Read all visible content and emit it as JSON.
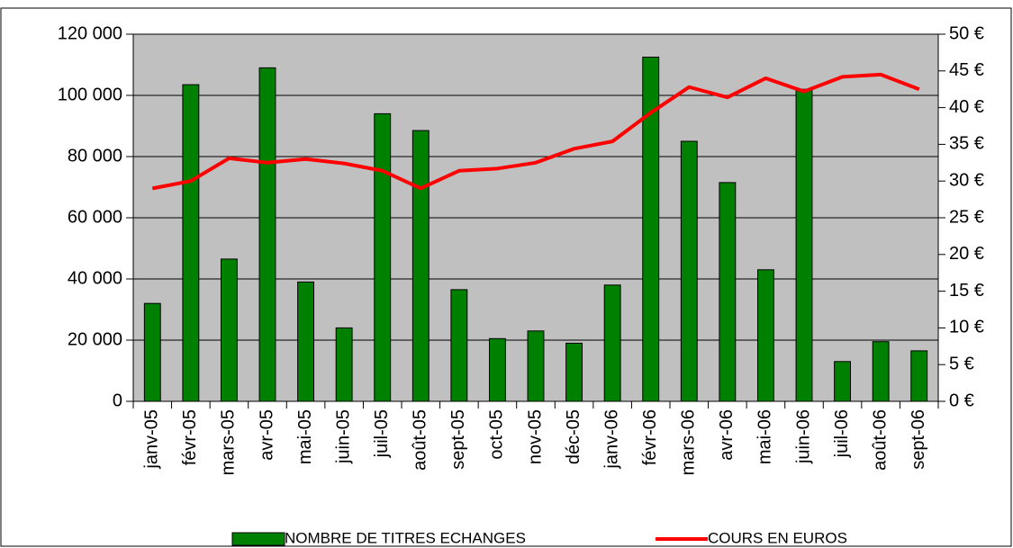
{
  "chart_data": {
    "type": "bar",
    "categories": [
      "janv-05",
      "févr-05",
      "mars-05",
      "avr-05",
      "mai-05",
      "juin-05",
      "juil-05",
      "août-05",
      "sept-05",
      "oct-05",
      "nov-05",
      "déc-05",
      "janv-06",
      "févr-06",
      "mars-06",
      "avr-06",
      "mai-06",
      "juin-06",
      "juil-06",
      "août-06",
      "sept-06"
    ],
    "series": [
      {
        "name": "NOMBRE DE TITRES ECHANGES",
        "type": "bar",
        "color": "#008000",
        "values": [
          32000,
          103500,
          46500,
          109000,
          39000,
          24000,
          94000,
          88500,
          36500,
          20500,
          23000,
          19000,
          38000,
          112500,
          85000,
          71500,
          43000,
          102000,
          13000,
          19500,
          16500
        ]
      },
      {
        "name": "COURS EN EUROS",
        "type": "line",
        "axis": "y2",
        "color": "#ff0000",
        "values": [
          29.0,
          30.0,
          33.1,
          32.5,
          33.0,
          32.4,
          31.4,
          29.0,
          31.4,
          31.7,
          32.5,
          34.4,
          35.4,
          39.3,
          42.8,
          41.4,
          44.0,
          42.2,
          44.2,
          44.5,
          42.5
        ]
      }
    ],
    "ylim": [
      0,
      120000
    ],
    "yticks": [
      {
        "value": 0,
        "label": "0"
      },
      {
        "value": 20000,
        "label": "20 000"
      },
      {
        "value": 40000,
        "label": "40 000"
      },
      {
        "value": 60000,
        "label": "60 000"
      },
      {
        "value": 80000,
        "label": "80 000"
      },
      {
        "value": 100000,
        "label": "100 000"
      },
      {
        "value": 120000,
        "label": "120 000"
      }
    ],
    "y2lim": [
      0,
      50
    ],
    "y2ticks": [
      {
        "value": 0,
        "label": "0 €"
      },
      {
        "value": 5,
        "label": "5 €"
      },
      {
        "value": 10,
        "label": "10 €"
      },
      {
        "value": 15,
        "label": "15 €"
      },
      {
        "value": 20,
        "label": "20 €"
      },
      {
        "value": 25,
        "label": "25 €"
      },
      {
        "value": 30,
        "label": "30 €"
      },
      {
        "value": 35,
        "label": "35 €"
      },
      {
        "value": 40,
        "label": "40 €"
      },
      {
        "value": 45,
        "label": "45 €"
      },
      {
        "value": 50,
        "label": "50 €"
      }
    ],
    "grid": true,
    "legend": "bottom"
  }
}
